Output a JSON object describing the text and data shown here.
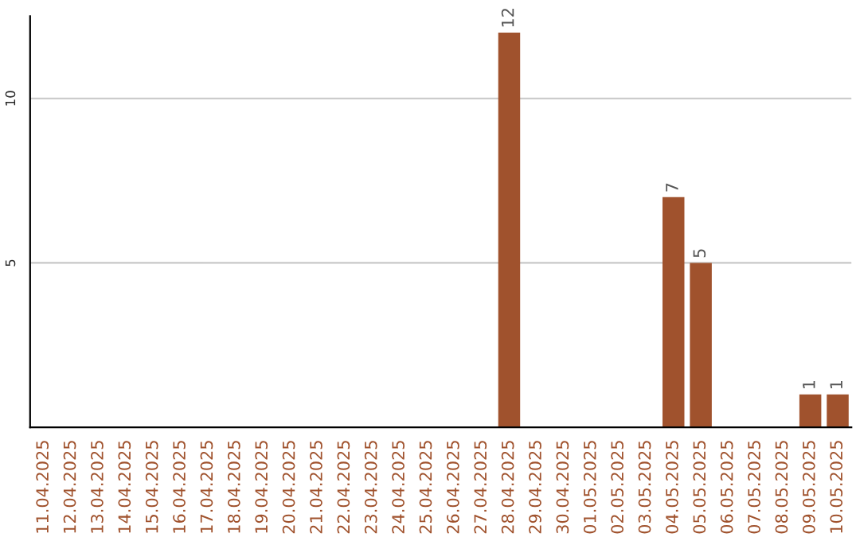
{
  "chart_data": {
    "type": "bar",
    "categories": [
      "11.04.2025",
      "12.04.2025",
      "13.04.2025",
      "14.04.2025",
      "15.04.2025",
      "16.04.2025",
      "17.04.2025",
      "18.04.2025",
      "19.04.2025",
      "20.04.2025",
      "21.04.2025",
      "22.04.2025",
      "23.04.2025",
      "24.04.2025",
      "25.04.2025",
      "26.04.2025",
      "27.04.2025",
      "28.04.2025",
      "29.04.2025",
      "30.04.2025",
      "01.05.2025",
      "02.05.2025",
      "03.05.2025",
      "04.05.2025",
      "05.05.2025",
      "06.05.2025",
      "07.05.2025",
      "08.05.2025",
      "09.05.2025",
      "10.05.2025"
    ],
    "values": [
      0,
      0,
      0,
      0,
      0,
      0,
      0,
      0,
      0,
      0,
      0,
      0,
      0,
      0,
      0,
      0,
      0,
      12,
      0,
      0,
      0,
      0,
      0,
      7,
      5,
      0,
      0,
      0,
      1,
      1
    ],
    "value_labels": [
      null,
      null,
      null,
      null,
      null,
      null,
      null,
      null,
      null,
      null,
      null,
      null,
      null,
      null,
      null,
      null,
      null,
      "12",
      null,
      null,
      null,
      null,
      null,
      "7",
      "5",
      null,
      null,
      null,
      "1",
      "1"
    ],
    "color": "#a0522d",
    "ylim": [
      0,
      12.5
    ],
    "yticks": [
      5,
      10
    ],
    "grid": "y",
    "legend": false
  }
}
